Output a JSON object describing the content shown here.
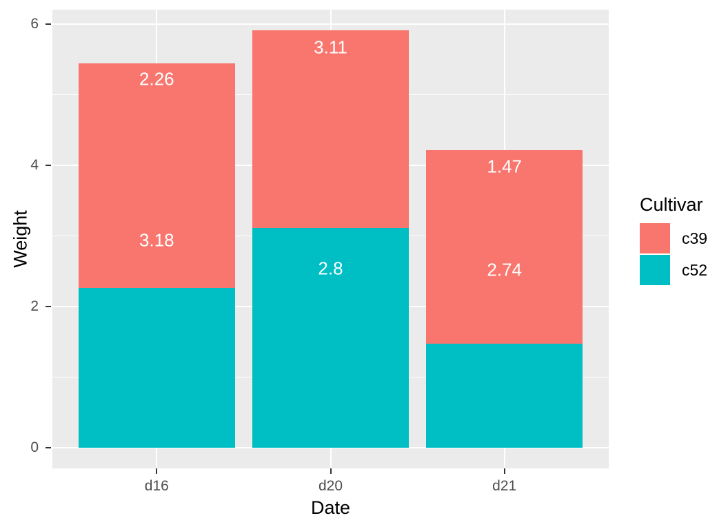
{
  "chart_data": {
    "type": "bar",
    "stacked": true,
    "title": "",
    "xlabel": "Date",
    "ylabel": "Weight",
    "categories": [
      "d16",
      "d20",
      "d21"
    ],
    "series": [
      {
        "name": "c39",
        "color": "#F8766D",
        "values": [
          3.18,
          2.8,
          2.74
        ]
      },
      {
        "name": "c52",
        "color": "#00BFC4",
        "values": [
          2.26,
          3.11,
          1.47
        ]
      }
    ],
    "stack_order_bottom_to_top": [
      "c52",
      "c39"
    ],
    "totals": [
      5.44,
      5.91,
      4.21
    ],
    "y_axis": {
      "ticks": [
        0,
        2,
        4,
        6
      ],
      "minor_ticks": [
        1,
        3,
        5
      ],
      "ylim": [
        0,
        6.2
      ]
    },
    "grid": "on",
    "bar_labels": [
      {
        "category": "d16",
        "text": "2.26",
        "y": 5.22
      },
      {
        "category": "d16",
        "text": "3.18",
        "y": 2.94
      },
      {
        "category": "d20",
        "text": "3.11",
        "y": 5.67
      },
      {
        "category": "d20",
        "text": "2.8",
        "y": 2.54
      },
      {
        "category": "d21",
        "text": "1.47",
        "y": 3.98
      },
      {
        "category": "d21",
        "text": "2.74",
        "y": 2.52
      }
    ],
    "legend": {
      "title": "Cultivar",
      "position": "right",
      "entries": [
        {
          "label": "c39",
          "color": "#F8766D"
        },
        {
          "label": "c52",
          "color": "#00BFC4"
        }
      ]
    },
    "colors": {
      "panel_background": "#EBEBEB",
      "grid": "#FFFFFF",
      "axis_text": "#4D4D4D",
      "title_text": "#000000",
      "bar_label_text": "#FFFFFF",
      "tick_mark": "#333333"
    }
  }
}
